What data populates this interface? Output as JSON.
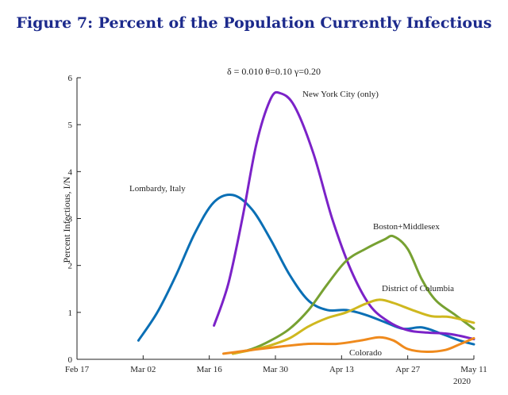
{
  "figure_title": "Figure 7: Percent of the Population Currently Infectious",
  "chart_data": {
    "type": "line",
    "title": "Figure 7: Percent of the Population Currently Infectious",
    "subtitle": "δ = 0.010  θ=0.10  γ=0.20",
    "xlabel": "",
    "ylabel": "Percent Infectious, I/N",
    "x_axis": {
      "type": "date",
      "min": "2020-02-17",
      "max": "2020-05-11",
      "ticks": [
        {
          "value": "2020-02-17",
          "label": "Feb 17"
        },
        {
          "value": "2020-03-02",
          "label": "Mar 02"
        },
        {
          "value": "2020-03-16",
          "label": "Mar 16"
        },
        {
          "value": "2020-03-30",
          "label": "Mar 30"
        },
        {
          "value": "2020-04-13",
          "label": "Apr 13"
        },
        {
          "value": "2020-04-27",
          "label": "Apr 27"
        },
        {
          "value": "2020-05-11",
          "label": "May 11"
        }
      ],
      "year_label": "2020"
    },
    "ylim": [
      0,
      6
    ],
    "yticks": [
      0,
      1,
      2,
      3,
      4,
      5,
      6
    ],
    "grid": false,
    "series": [
      {
        "name": "Lombardy, Italy",
        "color": "#0a6fb5",
        "points": [
          [
            "2020-03-01",
            0.4
          ],
          [
            "2020-03-05",
            1.0
          ],
          [
            "2020-03-09",
            1.8
          ],
          [
            "2020-03-13",
            2.7
          ],
          [
            "2020-03-17",
            3.35
          ],
          [
            "2020-03-21",
            3.5
          ],
          [
            "2020-03-25",
            3.2
          ],
          [
            "2020-03-29",
            2.55
          ],
          [
            "2020-04-02",
            1.8
          ],
          [
            "2020-04-06",
            1.25
          ],
          [
            "2020-04-10",
            1.05
          ],
          [
            "2020-04-14",
            1.05
          ],
          [
            "2020-04-18",
            0.95
          ],
          [
            "2020-04-22",
            0.8
          ],
          [
            "2020-04-26",
            0.65
          ],
          [
            "2020-04-30",
            0.68
          ],
          [
            "2020-05-04",
            0.55
          ],
          [
            "2020-05-08",
            0.4
          ],
          [
            "2020-05-11",
            0.32
          ]
        ]
      },
      {
        "name": "New York City (only)",
        "color": "#7b22c8",
        "points": [
          [
            "2020-03-17",
            0.72
          ],
          [
            "2020-03-20",
            1.6
          ],
          [
            "2020-03-23",
            3.0
          ],
          [
            "2020-03-26",
            4.6
          ],
          [
            "2020-03-29",
            5.55
          ],
          [
            "2020-03-31",
            5.67
          ],
          [
            "2020-04-03",
            5.4
          ],
          [
            "2020-04-07",
            4.4
          ],
          [
            "2020-04-11",
            3.0
          ],
          [
            "2020-04-15",
            1.9
          ],
          [
            "2020-04-19",
            1.15
          ],
          [
            "2020-04-23",
            0.8
          ],
          [
            "2020-04-27",
            0.62
          ],
          [
            "2020-05-01",
            0.57
          ],
          [
            "2020-05-05",
            0.55
          ],
          [
            "2020-05-08",
            0.5
          ],
          [
            "2020-05-11",
            0.43
          ]
        ]
      },
      {
        "name": "Boston+Middlesex",
        "color": "#77a132",
        "points": [
          [
            "2020-03-21",
            0.12
          ],
          [
            "2020-03-25",
            0.22
          ],
          [
            "2020-03-29",
            0.4
          ],
          [
            "2020-04-02",
            0.65
          ],
          [
            "2020-04-06",
            1.05
          ],
          [
            "2020-04-10",
            1.6
          ],
          [
            "2020-04-14",
            2.1
          ],
          [
            "2020-04-18",
            2.35
          ],
          [
            "2020-04-22",
            2.55
          ],
          [
            "2020-04-24",
            2.62
          ],
          [
            "2020-04-27",
            2.35
          ],
          [
            "2020-04-30",
            1.7
          ],
          [
            "2020-05-03",
            1.25
          ],
          [
            "2020-05-07",
            0.95
          ],
          [
            "2020-05-11",
            0.65
          ]
        ]
      },
      {
        "name": "District of Columbia",
        "color": "#cfb81f",
        "points": [
          [
            "2020-03-21",
            0.12
          ],
          [
            "2020-03-25",
            0.2
          ],
          [
            "2020-03-29",
            0.3
          ],
          [
            "2020-04-02",
            0.45
          ],
          [
            "2020-04-06",
            0.7
          ],
          [
            "2020-04-10",
            0.88
          ],
          [
            "2020-04-14",
            1.0
          ],
          [
            "2020-04-18",
            1.18
          ],
          [
            "2020-04-21",
            1.27
          ],
          [
            "2020-04-24",
            1.2
          ],
          [
            "2020-04-28",
            1.05
          ],
          [
            "2020-05-02",
            0.92
          ],
          [
            "2020-05-06",
            0.9
          ],
          [
            "2020-05-11",
            0.78
          ]
        ]
      },
      {
        "name": "Colorado",
        "color": "#ef8a1d",
        "points": [
          [
            "2020-03-19",
            0.12
          ],
          [
            "2020-03-25",
            0.2
          ],
          [
            "2020-03-31",
            0.27
          ],
          [
            "2020-04-06",
            0.33
          ],
          [
            "2020-04-12",
            0.33
          ],
          [
            "2020-04-17",
            0.4
          ],
          [
            "2020-04-21",
            0.47
          ],
          [
            "2020-04-24",
            0.4
          ],
          [
            "2020-04-27",
            0.22
          ],
          [
            "2020-05-01",
            0.16
          ],
          [
            "2020-05-05",
            0.2
          ],
          [
            "2020-05-08",
            0.32
          ],
          [
            "2020-05-11",
            0.45
          ]
        ]
      }
    ]
  }
}
